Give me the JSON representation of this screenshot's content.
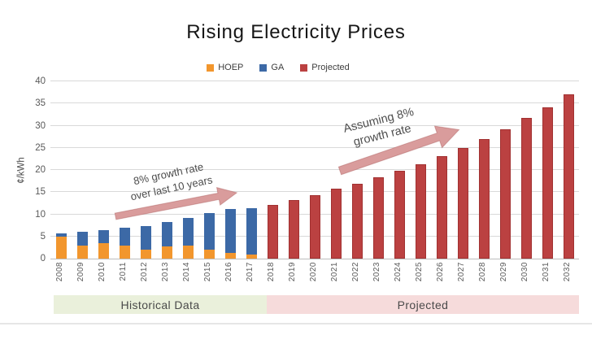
{
  "title": "Rising Electricity Prices",
  "legend": [
    {
      "label": "HOEP"
    },
    {
      "label": "GA"
    },
    {
      "label": "Projected"
    }
  ],
  "colors": {
    "hoep": "#F2962D",
    "ga": "#3C69A6",
    "projected": "#BB4141",
    "arrow": "#D99C9C",
    "band_green": "#EAF0DB",
    "band_pink": "#F6DBDB",
    "grid": "#D9D9D9",
    "axis": "#BDBDBD",
    "text_muted": "#595959"
  },
  "footer": {
    "historical_label": "Historical Data",
    "projected_label": "Projected"
  },
  "chart_data": {
    "type": "bar",
    "title": "Rising Electricity Prices",
    "xlabel": "",
    "ylabel": "¢/kWh",
    "ylim": [
      0,
      40
    ],
    "yticks": [
      0,
      5,
      10,
      15,
      20,
      25,
      30,
      35,
      40
    ],
    "grid": true,
    "legend_position": "top",
    "stacked": true,
    "categories": [
      "2008",
      "2009",
      "2010",
      "2011",
      "2012",
      "2013",
      "2014",
      "2015",
      "2016",
      "2017",
      "2018",
      "2019",
      "2020",
      "2021",
      "2022",
      "2023",
      "2024",
      "2025",
      "2026",
      "2027",
      "2028",
      "2029",
      "2030",
      "2031",
      "2032"
    ],
    "series": [
      {
        "name": "HOEP",
        "color": "#F2962D",
        "values": [
          5.0,
          3.0,
          3.5,
          3.0,
          2.1,
          2.7,
          3.0,
          2.1,
          1.2,
          1.0,
          0,
          0,
          0,
          0,
          0,
          0,
          0,
          0,
          0,
          0,
          0,
          0,
          0,
          0,
          0
        ]
      },
      {
        "name": "GA",
        "color": "#3C69A6",
        "values": [
          0.6,
          3.1,
          3.0,
          4.0,
          5.2,
          5.6,
          6.2,
          8.1,
          10.0,
          10.4,
          0,
          0,
          0,
          0,
          0,
          0,
          0,
          0,
          0,
          0,
          0,
          0,
          0,
          0,
          0
        ]
      },
      {
        "name": "Projected",
        "color": "#BB4141",
        "values": [
          0,
          0,
          0,
          0,
          0,
          0,
          0,
          0,
          0,
          0,
          12.2,
          13.2,
          14.4,
          15.7,
          16.9,
          18.3,
          19.8,
          21.3,
          23.1,
          25.0,
          27.0,
          29.2,
          31.7,
          34.2,
          37.1
        ]
      }
    ],
    "annotations": {
      "historical": {
        "line1": "8% growth rate",
        "line2": "over last 10 years"
      },
      "projected": {
        "line1": "Assuming 8%",
        "line2": "growth rate"
      }
    }
  }
}
